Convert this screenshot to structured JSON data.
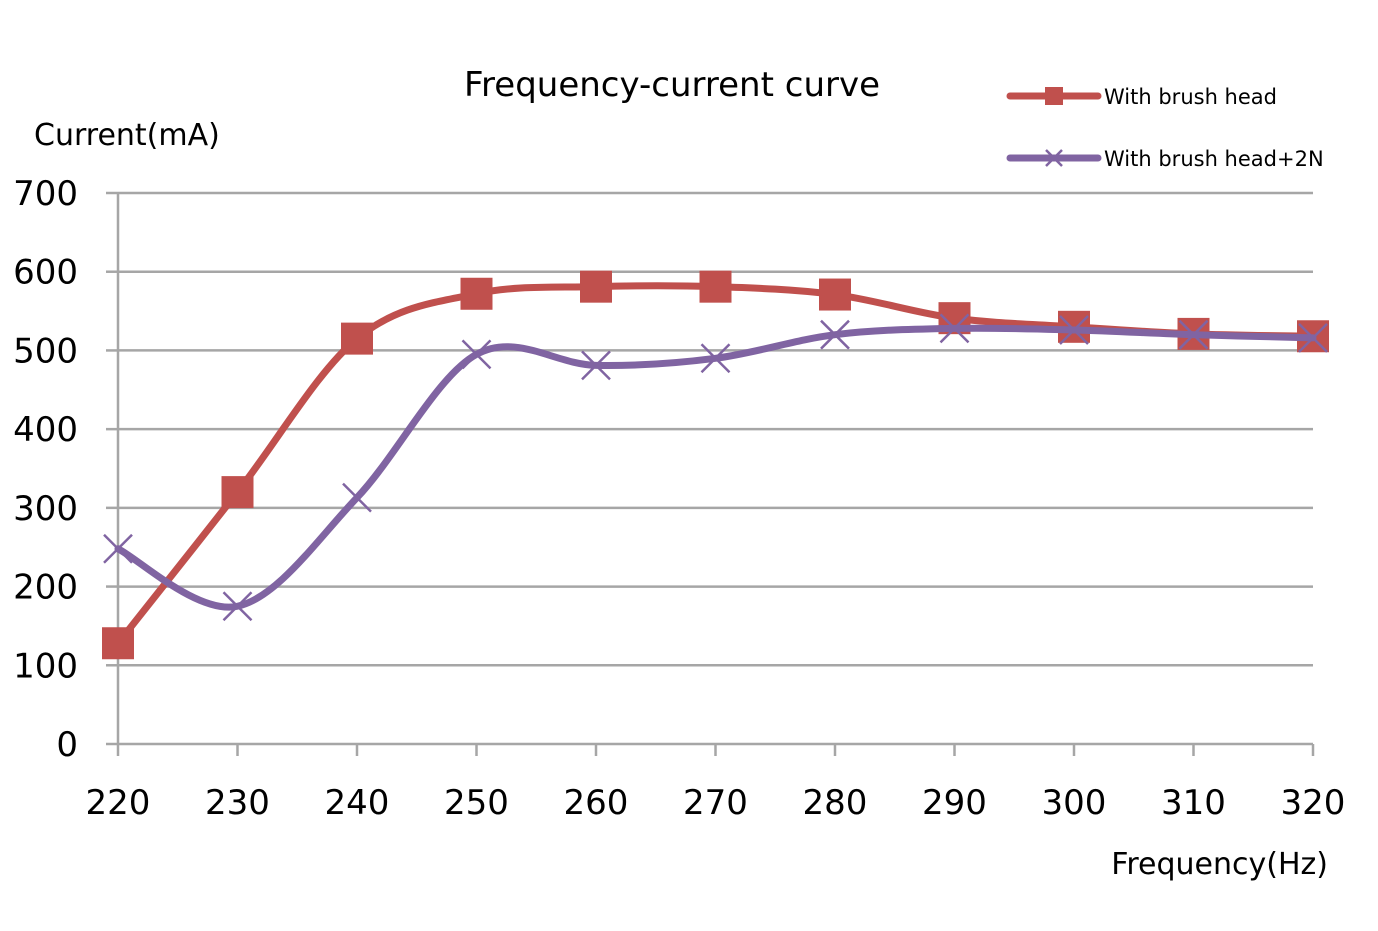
{
  "chart_data": {
    "type": "line",
    "title": "Frequency-current curve",
    "xlabel": "Frequency(Hz)",
    "ylabel": "Current(mA)",
    "x": [
      220,
      230,
      240,
      250,
      260,
      270,
      280,
      290,
      300,
      310,
      320
    ],
    "xlim": [
      220,
      320
    ],
    "ylim": [
      0,
      700
    ],
    "yticks": [
      0,
      100,
      200,
      300,
      400,
      500,
      600,
      700
    ],
    "grid": true,
    "smooth": true,
    "legend_position": "top-right",
    "series": [
      {
        "name": "With brush head",
        "color": "#c0504d",
        "marker": "square",
        "values": [
          128,
          320,
          515,
          572,
          581,
          581,
          571,
          541,
          530,
          521,
          518
        ]
      },
      {
        "name": "With brush head+2N",
        "color": "#8064a2",
        "marker": "x",
        "values": [
          248,
          175,
          313,
          495,
          481,
          490,
          520,
          528,
          526,
          520,
          516
        ]
      }
    ]
  }
}
